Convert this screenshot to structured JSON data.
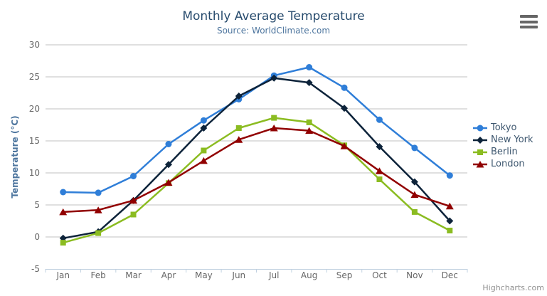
{
  "chart": {
    "credit": "Highcharts.com",
    "menu_icon": "hamburger-icon",
    "colors": {
      "title": "#274b6d",
      "subtitle": "#4d759e",
      "axis_title": "#4d759e",
      "axis_labels": "#666666",
      "legend_text": "#3e576f",
      "gridline": "#c0c0c0",
      "axis_line": "#c0d0e0",
      "credit_text": "#909090"
    }
  },
  "chart_data": {
    "type": "line",
    "title": "Monthly Average Temperature",
    "subtitle": "Source: WorldClimate.com",
    "xlabel": "",
    "ylabel": "Temperature (°C)",
    "categories": [
      "Jan",
      "Feb",
      "Mar",
      "Apr",
      "May",
      "Jun",
      "Jul",
      "Aug",
      "Sep",
      "Oct",
      "Nov",
      "Dec"
    ],
    "ylim": [
      -5,
      30
    ],
    "y_ticks": [
      -5,
      0,
      5,
      10,
      15,
      20,
      25,
      30
    ],
    "grid": "horizontal",
    "legend_position": "right",
    "series": [
      {
        "name": "Tokyo",
        "color": "#2f7ed8",
        "marker": "circle",
        "values": [
          7.0,
          6.9,
          9.5,
          14.5,
          18.2,
          21.5,
          25.2,
          26.5,
          23.3,
          18.3,
          13.9,
          9.6
        ]
      },
      {
        "name": "New York",
        "color": "#0d233a",
        "marker": "diamond",
        "values": [
          -0.2,
          0.8,
          5.7,
          11.3,
          17.0,
          22.0,
          24.8,
          24.1,
          20.1,
          14.1,
          8.6,
          2.5
        ]
      },
      {
        "name": "Berlin",
        "color": "#8bbc21",
        "marker": "square",
        "values": [
          -0.9,
          0.6,
          3.5,
          8.4,
          13.5,
          17.0,
          18.6,
          17.9,
          14.3,
          9.0,
          3.9,
          1.0
        ]
      },
      {
        "name": "London",
        "color": "#910000",
        "marker": "triangle",
        "values": [
          3.9,
          4.2,
          5.7,
          8.5,
          11.9,
          15.2,
          17.0,
          16.6,
          14.2,
          10.3,
          6.6,
          4.8
        ]
      }
    ]
  }
}
